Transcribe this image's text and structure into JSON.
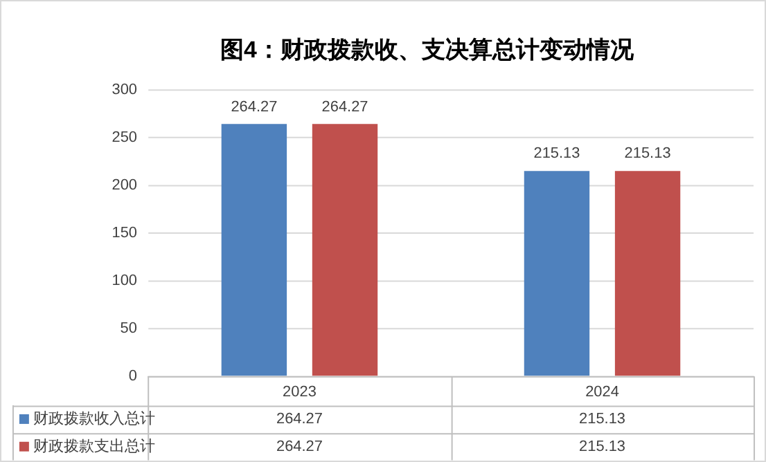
{
  "chart_data": {
    "type": "bar",
    "title": "图4：财政拨款收、支决算总计变动情况",
    "categories": [
      "2023",
      "2024"
    ],
    "series": [
      {
        "name": "财政拨款收入总计",
        "color": "#4f81bd",
        "values": [
          264.27,
          215.13
        ]
      },
      {
        "name": "财政拨款支出总计",
        "color": "#c0504d",
        "values": [
          264.27,
          215.13
        ]
      }
    ],
    "ylim": [
      0,
      300
    ],
    "yticks": [
      0,
      50,
      100,
      150,
      200,
      250,
      300
    ],
    "grid": "y",
    "legend": "bottom",
    "data_labels": true,
    "annotations": [
      "264.27",
      "215.13",
      "264.27",
      "215.13"
    ]
  }
}
